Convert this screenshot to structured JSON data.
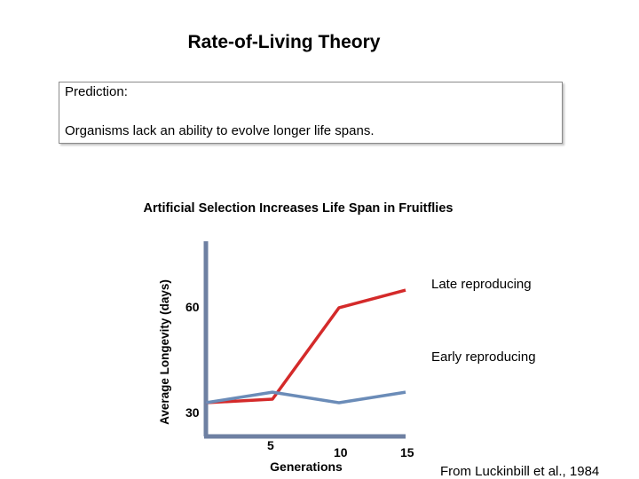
{
  "slide": {
    "title": "Rate-of-Living Theory",
    "prediction_label": "Prediction:",
    "prediction_text": "Organisms lack an ability to evolve longer life spans.",
    "credit": "From Luckinbill et al., 1984"
  },
  "colors": {
    "late": "#d42a2a",
    "early": "#6b8cb8",
    "axis": "#6e80a2"
  },
  "chart_data": {
    "type": "line",
    "title": "Artificial Selection Increases Life Span in Fruitflies",
    "xlabel": "Generations",
    "ylabel": "Average Longevity (days)",
    "xlim": [
      0,
      15
    ],
    "ylim": [
      30,
      60
    ],
    "xticks": [
      5,
      10,
      15
    ],
    "yticks": [
      30,
      60
    ],
    "grid": false,
    "series": [
      {
        "name": "Late reproducing",
        "x": [
          0,
          5,
          10,
          15
        ],
        "y": [
          30,
          31,
          57,
          62
        ]
      },
      {
        "name": "Early reproducing",
        "x": [
          0,
          5,
          10,
          15
        ],
        "y": [
          30,
          33,
          30,
          33
        ]
      }
    ]
  }
}
